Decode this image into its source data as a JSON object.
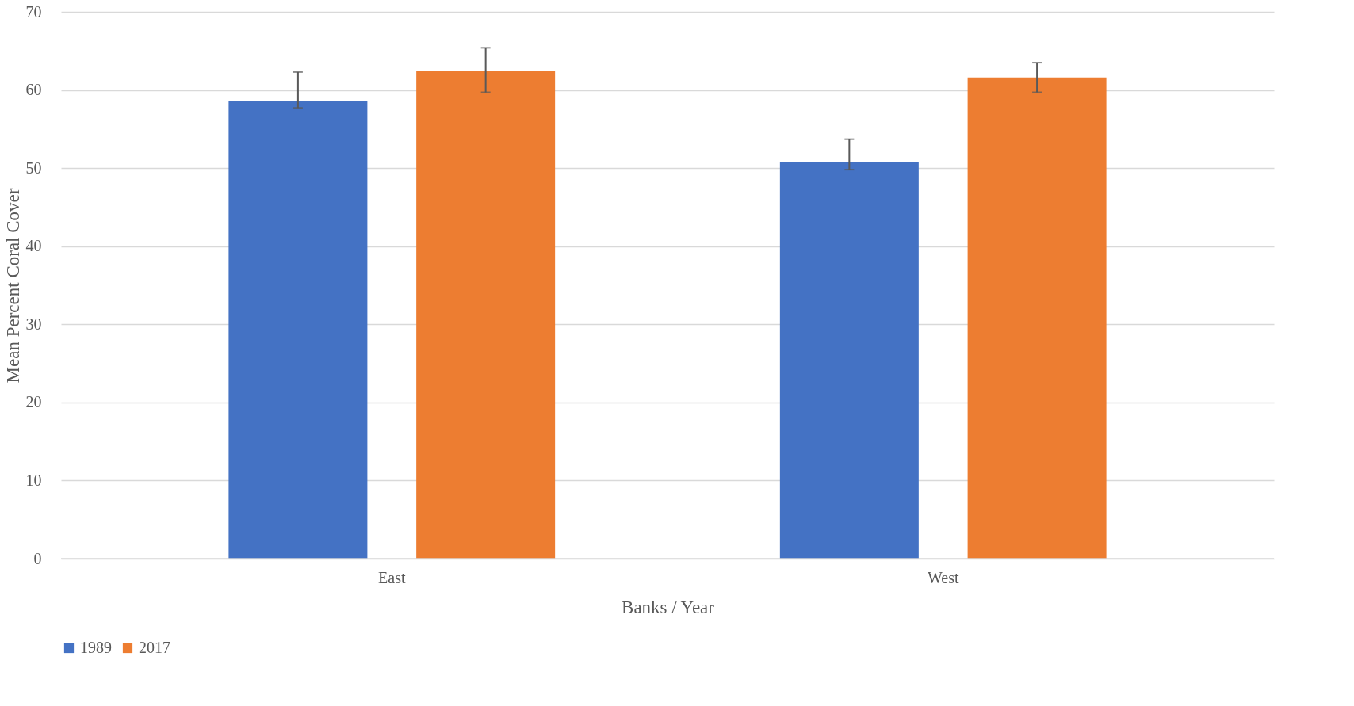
{
  "chart_data": {
    "type": "bar",
    "xlabel": "Banks / Year",
    "ylabel": "Mean Percent Coral Cover",
    "categories": [
      "East",
      "West"
    ],
    "series": [
      {
        "name": "1989",
        "color": "#4472c4",
        "values": [
          58.6,
          50.8
        ],
        "errors": [
          [
            57.7,
            62.3
          ],
          [
            49.8,
            53.7
          ]
        ]
      },
      {
        "name": "2017",
        "color": "#ed7d31",
        "values": [
          62.5,
          61.6
        ],
        "errors": [
          [
            59.7,
            65.4
          ],
          [
            59.7,
            63.5
          ]
        ]
      }
    ],
    "ylim": [
      0,
      70
    ],
    "yticks": [
      0,
      10,
      20,
      30,
      40,
      50,
      60,
      70
    ],
    "grid": "y",
    "legend": "bottom"
  }
}
